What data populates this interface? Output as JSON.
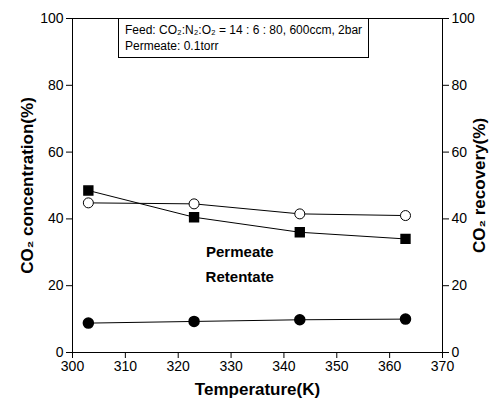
{
  "chart_data": {
    "type": "line",
    "annotations": [
      "Feed: CO₂:N₂:O₂ = 14 : 6 : 80, 600ccm, 2bar",
      "Permeate: 0.1torr"
    ],
    "x_label": "Temperature(K)",
    "y_label": "CO₂ concentration(%)",
    "y2_label": "CO₂ recovery(%)",
    "x": [
      303,
      323,
      343,
      363
    ],
    "series": [
      {
        "name": "Permeate",
        "color": "#000000",
        "marker": "square",
        "values": [
          48.5,
          40.5,
          36,
          34
        ]
      },
      {
        "name": "Retentate",
        "color": "#000000",
        "marker": "circle",
        "values": [
          8.8,
          9.3,
          9.8,
          10
        ]
      },
      {
        "color": "#000000",
        "marker": "open_circle",
        "axis": "y2",
        "values": [
          44.8,
          44.5,
          41.5,
          41
        ]
      }
    ],
    "xlim": [
      300,
      370
    ],
    "xticks": [
      300,
      310,
      320,
      330,
      340,
      350,
      360,
      370
    ],
    "ylim": [
      0,
      100
    ],
    "yticks": [
      0,
      20,
      40,
      60,
      80,
      100
    ],
    "y2lim": [
      0,
      100
    ],
    "y2ticks": [
      0,
      20,
      40,
      60,
      80,
      100
    ]
  }
}
